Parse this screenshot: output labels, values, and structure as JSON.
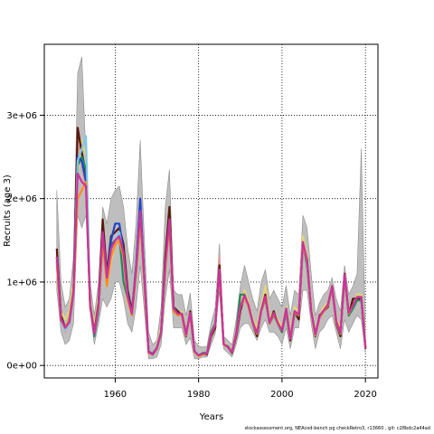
{
  "chart_data": {
    "type": "line",
    "title": "",
    "xlabel": "Years",
    "ylabel": "Recruits (age 3)",
    "xlim": [
      1943,
      2023
    ],
    "ylim": [
      -150000,
      3850000
    ],
    "xticks": [
      1960,
      1980,
      2000,
      2020
    ],
    "xtick_labels": [
      "1960",
      "1980",
      "2000",
      "2020"
    ],
    "yticks": [
      0,
      1000000,
      2000000,
      3000000
    ],
    "ytick_labels": [
      "0e+00",
      "1e+06",
      "2e+06",
      "3e+06"
    ],
    "grid": true,
    "legend": "none",
    "band_color": "#bebebe",
    "years": [
      1946,
      1947,
      1948,
      1949,
      1950,
      1951,
      1952,
      1953,
      1954,
      1955,
      1956,
      1957,
      1958,
      1959,
      1960,
      1961,
      1962,
      1963,
      1964,
      1965,
      1966,
      1967,
      1968,
      1969,
      1970,
      1971,
      1972,
      1973,
      1974,
      1975,
      1976,
      1977,
      1978,
      1979,
      1980,
      1981,
      1982,
      1983,
      1984,
      1985,
      1986,
      1987,
      1988,
      1989,
      1990,
      1991,
      1992,
      1993,
      1994,
      1995,
      1996,
      1997,
      1998,
      1999,
      2000,
      2001,
      2002,
      2003,
      2004,
      2005,
      2006,
      2007,
      2008,
      2009,
      2010,
      2011,
      2012,
      2013,
      2014,
      2015,
      2016,
      2017,
      2018,
      2019,
      2020
    ],
    "band_upper": [
      2100000,
      1000000,
      700000,
      800000,
      1300000,
      3500000,
      3700000,
      2500000,
      1000000,
      600000,
      1000000,
      1900000,
      1700000,
      2000000,
      2100000,
      2150000,
      1900000,
      1400000,
      1100000,
      1700000,
      2700000,
      1500000,
      400000,
      250000,
      300000,
      700000,
      1900000,
      2350000,
      900000,
      850000,
      850000,
      600000,
      870000,
      300000,
      230000,
      220000,
      230000,
      500000,
      700000,
      1460000,
      350000,
      300000,
      250000,
      550000,
      950000,
      1200000,
      1000000,
      800000,
      650000,
      1000000,
      1150000,
      800000,
      900000,
      800000,
      700000,
      960000,
      600000,
      900000,
      850000,
      1800000,
      1650000,
      1100000,
      600000,
      750000,
      850000,
      900000,
      1050000,
      800000,
      650000,
      1200000,
      850000,
      950000,
      1100000,
      2600000,
      300000
    ],
    "band_lower": [
      900000,
      400000,
      250000,
      300000,
      500000,
      1800000,
      1650000,
      1800000,
      650000,
      250000,
      500000,
      800000,
      700000,
      800000,
      1000000,
      1000000,
      800000,
      500000,
      400000,
      700000,
      1200000,
      650000,
      80000,
      80000,
      100000,
      250000,
      800000,
      1150000,
      450000,
      450000,
      450000,
      250000,
      330000,
      80000,
      80000,
      100000,
      100000,
      250000,
      380000,
      900000,
      200000,
      150000,
      100000,
      250000,
      450000,
      500000,
      500000,
      400000,
      300000,
      450000,
      550000,
      400000,
      400000,
      350000,
      250000,
      450000,
      200000,
      450000,
      450000,
      900000,
      900000,
      500000,
      200000,
      400000,
      450000,
      550000,
      600000,
      400000,
      200000,
      550000,
      400000,
      500000,
      600000,
      550000,
      150000
    ],
    "series": [
      {
        "color": "#e0a0a0",
        "values": [
          1350000,
          600000,
          400000,
          500000,
          800000,
          2700000,
          2400000,
          2100000,
          750000,
          400000,
          700000,
          1600000,
          1050000,
          1300000,
          1500000,
          1600000,
          1400000,
          800000,
          650000,
          1200000,
          1900000,
          1050000,
          150000,
          130000,
          200000,
          400000,
          1250000,
          1800000,
          700000,
          600000,
          600000,
          350000,
          630000,
          170000,
          120000,
          140000,
          150000,
          350000,
          450000,
          1300000,
          250000,
          220000,
          150000,
          350000,
          650000,
          800000,
          700000,
          500000,
          400000,
          650000,
          800000,
          500000,
          600000,
          500000,
          400000,
          650000,
          300000,
          620000,
          600000,
          1500000,
          1200000,
          650000,
          350000,
          550000,
          650000,
          700000,
          900000,
          500000,
          400000,
          1050000,
          600000,
          700000,
          800000,
          800000,
          200000
        ]
      },
      {
        "color": "#e3d47a",
        "values": [
          1300000,
          650000,
          550000,
          650000,
          1000000,
          2300000,
          2700000,
          2500000,
          800000,
          450000,
          800000,
          1550000,
          950000,
          1250000,
          1450000,
          1500000,
          1300000,
          750000,
          600000,
          1100000,
          1800000,
          1000000,
          150000,
          140000,
          220000,
          450000,
          1150000,
          1700000,
          650000,
          600000,
          650000,
          400000,
          650000,
          160000,
          110000,
          130000,
          140000,
          400000,
          500000,
          1100000,
          280000,
          230000,
          170000,
          400000,
          700000,
          900000,
          750000,
          550000,
          450000,
          700000,
          950000,
          550000,
          650000,
          550000,
          450000,
          700000,
          350000,
          700000,
          650000,
          1550000,
          1300000,
          700000,
          400000,
          600000,
          700000,
          750000,
          950000,
          550000,
          450000,
          1100000,
          650000,
          700000,
          850000,
          850000,
          250000
        ]
      },
      {
        "color": "#5a1a0a",
        "values": [
          1400000,
          600000,
          450000,
          550000,
          900000,
          2850000,
          2550000,
          2300000,
          750000,
          400000,
          750000,
          1750000,
          1100000,
          1550000,
          1600000,
          1650000,
          1450000,
          900000,
          650000,
          1150000,
          1900000,
          1050000,
          170000,
          130000,
          200000,
          400000,
          1300000,
          1900000,
          700000,
          650000,
          600000,
          350000,
          650000,
          170000,
          120000,
          140000,
          130000,
          350000,
          450000,
          1200000,
          250000,
          220000,
          150000,
          350000,
          650000,
          850000,
          700000,
          500000,
          350000,
          650000,
          850000,
          500000,
          650000,
          500000,
          400000,
          650000,
          300000,
          650000,
          550000,
          1450000,
          1250000,
          650000,
          350000,
          600000,
          650000,
          700000,
          950000,
          500000,
          350000,
          1100000,
          600000,
          800000,
          800000,
          800000,
          200000
        ]
      },
      {
        "color": "#1e8a5a",
        "values": [
          1300000,
          550000,
          450000,
          550000,
          900000,
          2400000,
          2500000,
          2350000,
          720000,
          350000,
          650000,
          1500000,
          1000000,
          1450000,
          1500000,
          1550000,
          1000000,
          800000,
          600000,
          1100000,
          1750000,
          1000000,
          160000,
          130000,
          200000,
          380000,
          1150000,
          1750000,
          700000,
          600000,
          600000,
          380000,
          620000,
          170000,
          120000,
          150000,
          150000,
          400000,
          500000,
          1050000,
          250000,
          230000,
          160000,
          380000,
          850000,
          850000,
          700000,
          520000,
          380000,
          650000,
          800000,
          500000,
          600000,
          500000,
          400000,
          650000,
          320000,
          620000,
          600000,
          1450000,
          1200000,
          650000,
          380000,
          580000,
          650000,
          720000,
          920000,
          520000,
          400000,
          1050000,
          600000,
          680000,
          780000,
          780000,
          220000
        ]
      },
      {
        "color": "#2244cc",
        "values": [
          1250000,
          550000,
          450000,
          500000,
          850000,
          2500000,
          2450000,
          2200000,
          700000,
          380000,
          700000,
          1600000,
          1050000,
          1500000,
          1700000,
          1700000,
          1350000,
          850000,
          620000,
          1200000,
          2000000,
          1050000,
          160000,
          140000,
          210000,
          400000,
          1200000,
          1700000,
          650000,
          600000,
          620000,
          380000,
          630000,
          170000,
          120000,
          140000,
          140000,
          380000,
          480000,
          1150000,
          260000,
          220000,
          160000,
          380000,
          700000,
          820000,
          700000,
          500000,
          380000,
          650000,
          820000,
          500000,
          620000,
          500000,
          420000,
          680000,
          320000,
          640000,
          600000,
          1450000,
          1250000,
          650000,
          360000,
          580000,
          650000,
          720000,
          940000,
          520000,
          380000,
          1080000,
          620000,
          720000,
          820000,
          820000,
          210000
        ]
      },
      {
        "color": "#7fc8e8",
        "values": [
          1250000,
          550000,
          420000,
          500000,
          850000,
          2450000,
          2600000,
          2750000,
          750000,
          380000,
          680000,
          1550000,
          1000000,
          1350000,
          1500000,
          1600000,
          1300000,
          800000,
          600000,
          1150000,
          1850000,
          1050000,
          150000,
          130000,
          200000,
          400000,
          1150000,
          1700000,
          650000,
          600000,
          600000,
          360000,
          620000,
          160000,
          110000,
          130000,
          140000,
          380000,
          480000,
          1100000,
          250000,
          220000,
          160000,
          380000,
          700000,
          820000,
          700000,
          500000,
          380000,
          650000,
          820000,
          500000,
          620000,
          500000,
          420000,
          680000,
          320000,
          640000,
          600000,
          1450000,
          1250000,
          650000,
          360000,
          580000,
          650000,
          720000,
          940000,
          520000,
          380000,
          1080000,
          620000,
          720000,
          820000,
          820000,
          210000
        ]
      },
      {
        "color": "#ff8c1a",
        "values": [
          1200000,
          550000,
          450000,
          550000,
          900000,
          2000000,
          2100000,
          2200000,
          700000,
          380000,
          700000,
          1500000,
          950000,
          1300000,
          1450000,
          1500000,
          1300000,
          780000,
          600000,
          1100000,
          1750000,
          1000000,
          150000,
          130000,
          200000,
          400000,
          1150000,
          1700000,
          650000,
          600000,
          600000,
          360000,
          620000,
          160000,
          110000,
          130000,
          140000,
          380000,
          480000,
          1100000,
          250000,
          220000,
          160000,
          380000,
          700000,
          820000,
          700000,
          500000,
          380000,
          650000,
          820000,
          500000,
          620000,
          500000,
          420000,
          680000,
          320000,
          640000,
          600000,
          1450000,
          1250000,
          650000,
          360000,
          580000,
          650000,
          720000,
          940000,
          520000,
          380000,
          1080000,
          620000,
          720000,
          820000,
          820000,
          210000
        ]
      },
      {
        "color": "#cc3399",
        "values": [
          1300000,
          550000,
          450000,
          520000,
          880000,
          2300000,
          2200000,
          2150000,
          720000,
          380000,
          720000,
          1600000,
          1050000,
          1400000,
          1500000,
          1550000,
          1350000,
          820000,
          620000,
          1150000,
          1850000,
          1030000,
          160000,
          130000,
          210000,
          400000,
          1200000,
          1750000,
          680000,
          620000,
          620000,
          370000,
          630000,
          170000,
          120000,
          140000,
          140000,
          380000,
          480000,
          1150000,
          260000,
          220000,
          160000,
          380000,
          700000,
          840000,
          720000,
          510000,
          390000,
          660000,
          830000,
          510000,
          630000,
          510000,
          420000,
          680000,
          320000,
          650000,
          610000,
          1480000,
          1270000,
          660000,
          370000,
          590000,
          660000,
          730000,
          950000,
          530000,
          390000,
          1090000,
          630000,
          720000,
          820000,
          820000,
          210000
        ]
      }
    ]
  },
  "footer_text": "stockassessment.org,  NEAcod-bench  pg  checkRetro3,  r13660 ,  git:  c28bdc2a44ad"
}
